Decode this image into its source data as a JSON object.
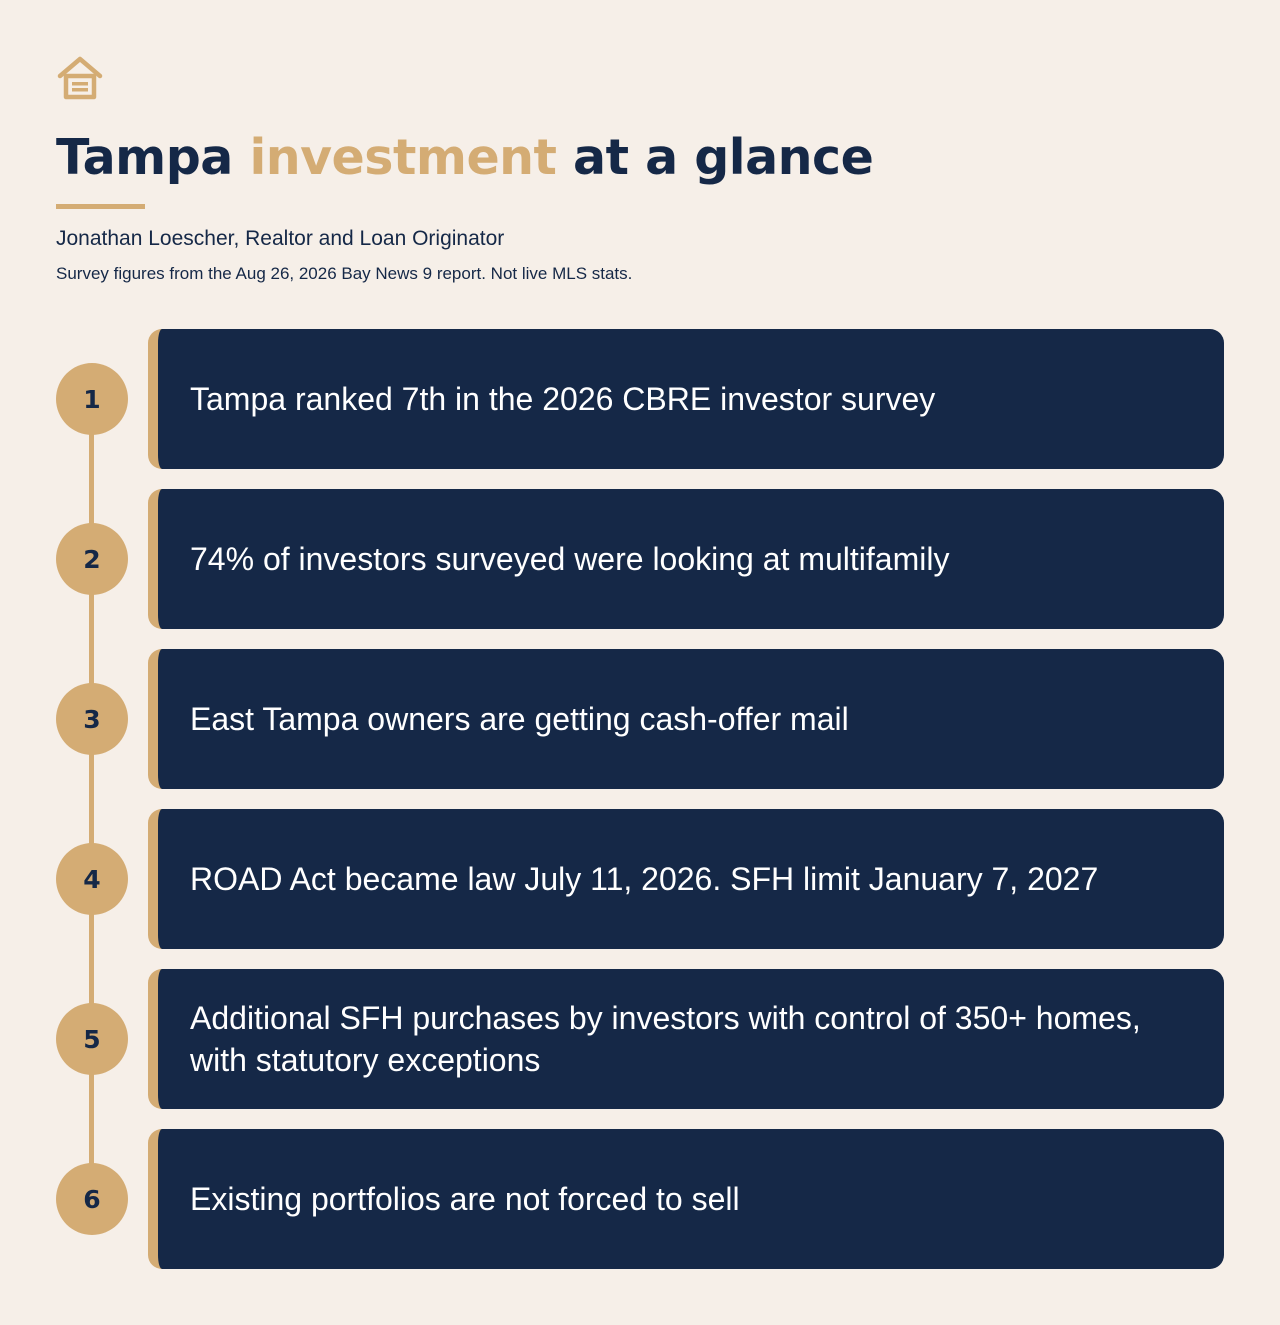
{
  "header": {
    "logo_icon": "house-icon",
    "title_part1": "Tampa ",
    "title_accent": "investment",
    "title_part2": " at a glance",
    "author": "Jonathan Loescher, Realtor and Loan Originator",
    "note": "Survey figures from the Aug 26, 2026 Bay News 9 report. Not live MLS stats."
  },
  "colors": {
    "navy": "#152847",
    "gold": "#d4ac74",
    "background": "#f6efe8"
  },
  "items": [
    {
      "number": "1",
      "text": "Tampa ranked 7th in the 2026 CBRE investor survey"
    },
    {
      "number": "2",
      "text": "74% of investors surveyed were looking at multifamily"
    },
    {
      "number": "3",
      "text": "East Tampa owners are getting cash-offer mail"
    },
    {
      "number": "4",
      "text": "ROAD Act became law July 11, 2026. SFH limit January 7, 2027"
    },
    {
      "number": "5",
      "text": "Additional SFH purchases by investors with control of 350+ homes, with statutory exceptions"
    },
    {
      "number": "6",
      "text": "Existing portfolios are not forced to sell"
    }
  ]
}
